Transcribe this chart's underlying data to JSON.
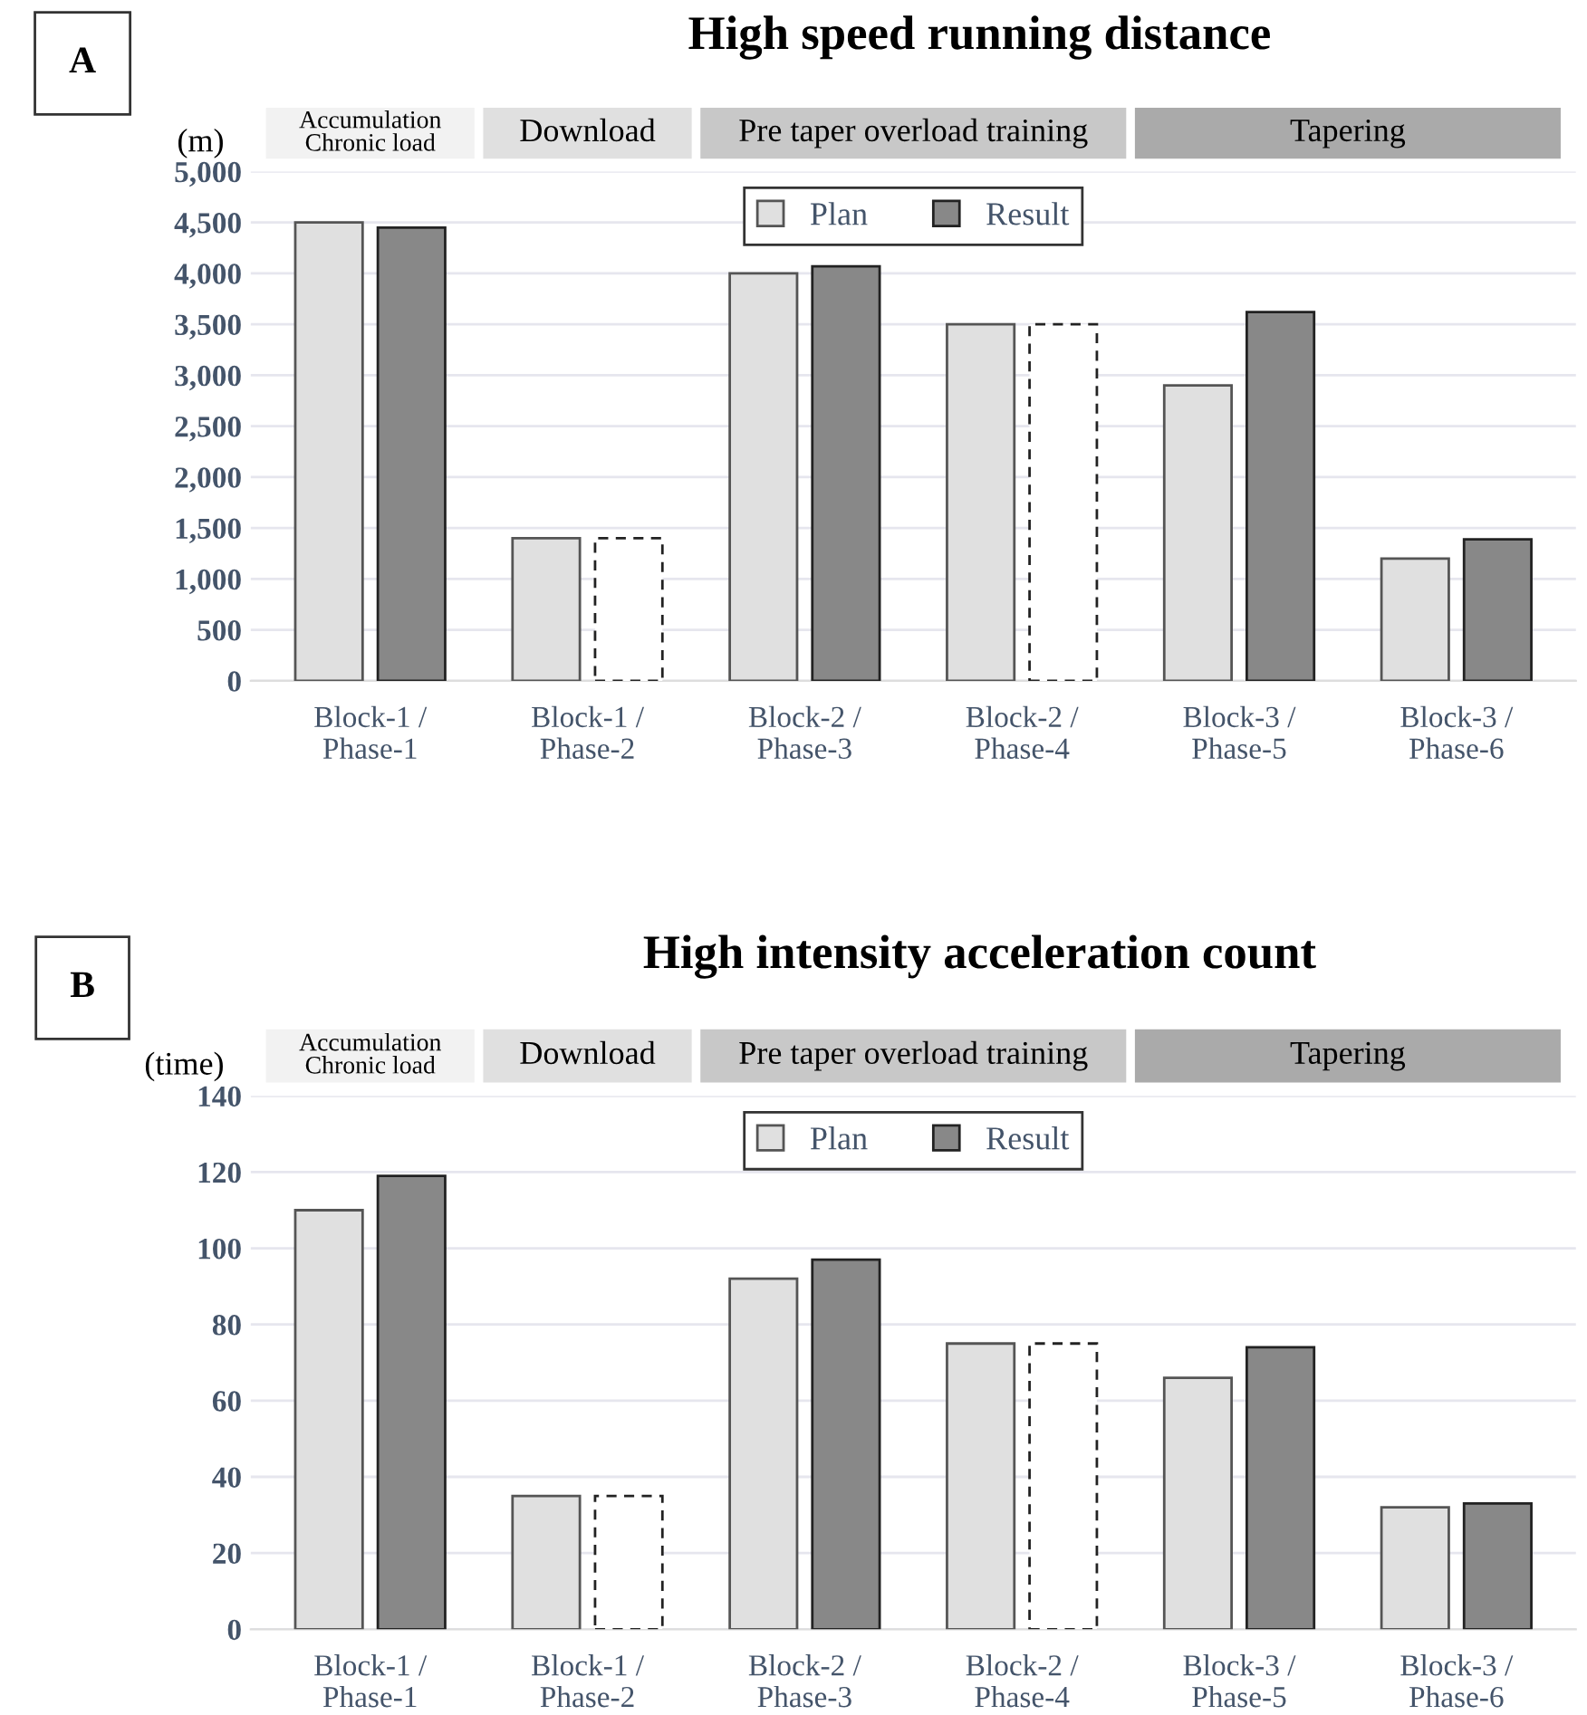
{
  "chart_data": [
    {
      "type": "bar",
      "title": "High speed running distance",
      "ylabel": "(m)",
      "categories": [
        "Block-1 /\nPhase-1",
        "Block-1 /\nPhase-2",
        "Block-2 /\nPhase-3",
        "Block-2 /\nPhase-4",
        "Block-3 /\nPhase-5",
        "Block-3 /\nPhase-6"
      ],
      "series": [
        {
          "name": "Plan",
          "color": "#e0e0e0",
          "values": [
            4500,
            1400,
            4000,
            3500,
            2900,
            1200
          ]
        },
        {
          "name": "Result",
          "color": "#888888",
          "values": [
            4450,
            null,
            4070,
            null,
            3620,
            1390
          ]
        },
        {
          "color": "#ffffff",
          "line_style": "dashed",
          "values": [
            null,
            1400,
            null,
            3500,
            null,
            null
          ]
        }
      ],
      "ylim": [
        0,
        5000
      ],
      "yticks": [
        {
          "value": 0,
          "label": "0"
        },
        {
          "value": 500,
          "label": "500"
        },
        {
          "value": 1000,
          "label": "1,000"
        },
        {
          "value": 1500,
          "label": "1,500"
        },
        {
          "value": 2000,
          "label": "2,000"
        },
        {
          "value": 2500,
          "label": "2,500"
        },
        {
          "value": 3000,
          "label": "3,000"
        },
        {
          "value": 3500,
          "label": "3,500"
        },
        {
          "value": 4000,
          "label": "4,000"
        },
        {
          "value": 4500,
          "label": "4,500"
        },
        {
          "value": 5000,
          "label": "5,000"
        }
      ],
      "grid": "y",
      "legend": "top",
      "annotations": [
        "A",
        "Accumulation\nChronic load",
        "Download",
        "Pre taper overload training",
        "Tapering"
      ]
    },
    {
      "type": "bar",
      "title": "High intensity acceleration count",
      "ylabel": "(time)",
      "categories": [
        "Block-1 /\nPhase-1",
        "Block-1 /\nPhase-2",
        "Block-2 /\nPhase-3",
        "Block-2 /\nPhase-4",
        "Block-3 /\nPhase-5",
        "Block-3 /\nPhase-6"
      ],
      "series": [
        {
          "name": "Plan",
          "color": "#e0e0e0",
          "values": [
            110,
            35,
            92,
            75,
            66,
            32
          ]
        },
        {
          "name": "Result",
          "color": "#888888",
          "values": [
            119,
            null,
            97,
            null,
            74,
            33
          ]
        },
        {
          "color": "#ffffff",
          "line_style": "dashed",
          "values": [
            null,
            35,
            null,
            75,
            null,
            null
          ]
        }
      ],
      "ylim": [
        0,
        140
      ],
      "yticks": [
        0,
        20,
        40,
        60,
        80,
        100,
        120,
        140
      ],
      "grid": "y",
      "legend": "top",
      "annotations": [
        "B",
        "Accumulation\nChronic load",
        "Download",
        "Pre taper overload training",
        "Tapering"
      ]
    }
  ]
}
